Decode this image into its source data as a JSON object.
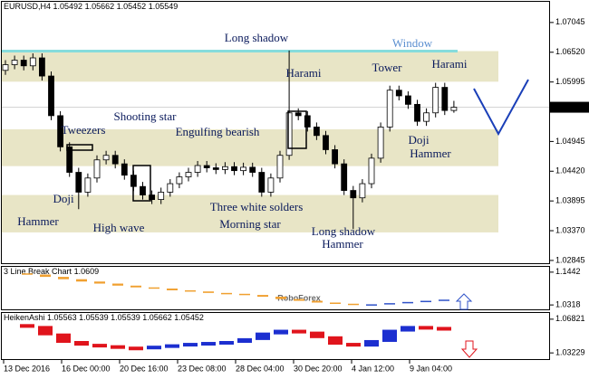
{
  "chart_data": [
    {
      "type": "candlestick",
      "symbol": "EURUSD,H4",
      "open": [
        1.062,
        1.063,
        1.0638,
        1.0628,
        1.0642,
        1.061,
        1.054,
        1.0485,
        1.044,
        1.0405,
        1.043,
        1.0462,
        1.047,
        1.0455,
        1.0435,
        1.0415,
        1.04,
        1.0392,
        1.0405,
        1.042,
        1.0432,
        1.044,
        1.0452,
        1.0448,
        1.0445,
        1.045,
        1.0443,
        1.0449,
        1.044,
        1.0405,
        1.043,
        1.047,
        1.0545,
        1.054,
        1.052,
        1.0505,
        1.048,
        1.0455,
        1.0408,
        1.0395,
        1.042,
        1.0465,
        1.052,
        1.0585,
        1.0575,
        1.056,
        1.053,
        1.0545,
        1.059,
        1.05492
      ],
      "high": [
        1.0638,
        1.0646,
        1.0646,
        1.065,
        1.065,
        1.0618,
        1.0548,
        1.0493,
        1.0448,
        1.0438,
        1.047,
        1.0478,
        1.0478,
        1.0463,
        1.0443,
        1.0423,
        1.0408,
        1.0413,
        1.0428,
        1.044,
        1.0448,
        1.046,
        1.046,
        1.0456,
        1.0458,
        1.0458,
        1.0457,
        1.0457,
        1.0448,
        1.0438,
        1.0478,
        1.0655,
        1.0553,
        1.0548,
        1.0528,
        1.0513,
        1.0488,
        1.0463,
        1.0416,
        1.0428,
        1.0473,
        1.0528,
        1.0593,
        1.0593,
        1.0583,
        1.0568,
        1.0553,
        1.0598,
        1.0598,
        1.05662
      ],
      "low": [
        1.0612,
        1.0622,
        1.062,
        1.062,
        1.0602,
        1.0532,
        1.0477,
        1.0432,
        1.0375,
        1.0397,
        1.0422,
        1.0454,
        1.0447,
        1.0427,
        1.0407,
        1.0392,
        1.0384,
        1.0384,
        1.0397,
        1.0412,
        1.0424,
        1.0432,
        1.044,
        1.0437,
        1.0437,
        1.0435,
        1.0435,
        1.0432,
        1.0397,
        1.0397,
        1.0422,
        1.0462,
        1.0532,
        1.0512,
        1.0497,
        1.0472,
        1.0447,
        1.04,
        1.034,
        1.0387,
        1.0412,
        1.0457,
        1.0512,
        1.0567,
        1.0552,
        1.0522,
        1.0522,
        1.0537,
        1.05412,
        1.05452
      ],
      "close": [
        1.063,
        1.0638,
        1.0628,
        1.0642,
        1.061,
        1.054,
        1.0485,
        1.044,
        1.0405,
        1.043,
        1.0462,
        1.047,
        1.0455,
        1.0435,
        1.0415,
        1.04,
        1.0392,
        1.0405,
        1.042,
        1.0432,
        1.044,
        1.0452,
        1.0448,
        1.0445,
        1.045,
        1.0443,
        1.0449,
        1.044,
        1.0405,
        1.043,
        1.047,
        1.0545,
        1.054,
        1.052,
        1.0505,
        1.048,
        1.0455,
        1.0408,
        1.0395,
        1.042,
        1.0465,
        1.052,
        1.0585,
        1.0575,
        1.056,
        1.053,
        1.0545,
        1.059,
        1.05492,
        1.05549
      ],
      "ylim": [
        1.0278,
        1.0741
      ],
      "yticks": [
        1.07045,
        {
          "value": 1.0652,
          "label": "1.06520"
        },
        1.05995,
        1.04945,
        {
          "value": 1.0442,
          "label": "1.04420"
        },
        1.03895,
        {
          "value": 1.0337,
          "label": "1.03370"
        },
        1.02845
      ],
      "zones": [
        [
          1.06,
          1.0654
        ],
        [
          1.0451,
          1.0516
        ],
        [
          1.0334,
          1.04
        ]
      ],
      "zone_color": "#e8e5c6",
      "window_level": 1.0654,
      "window_color": "#86dcdc",
      "up_color": "#ffffff",
      "down_color": "#000000",
      "annotations": [
        "Long shadow",
        "Window",
        "Harami",
        "Tower",
        "Harami",
        "Shooting star",
        "Tweezers",
        "Engulfing bearish",
        "Doji",
        "Hammer",
        "Doji",
        "Hammer",
        "High wave",
        "Three white solders",
        "Morning star",
        "Long shadow",
        "Hammer"
      ],
      "time_labels": [
        "13 Dec 2016",
        "16 Dec 00:00",
        "20 Dec 16:00",
        "23 Dec 08:00",
        "28 Dec 04:00",
        "30 Dec 20:00",
        "4 Jan 12:00",
        "9 Jan 04:00"
      ],
      "watermark": "RoboForex"
    },
    {
      "type": "line_break",
      "title": "3 Line Break Chart",
      "last": 1.0609,
      "values": [
        1.14,
        1.136,
        1.128,
        1.12,
        1.112,
        1.105,
        1.098,
        1.092,
        1.088,
        1.082,
        1.078,
        1.073,
        1.07,
        1.066,
        1.06,
        1.052,
        1.046,
        1.04,
        1.036,
        1.033,
        1.034,
        1.038,
        1.042,
        1.046,
        1.05
      ],
      "ylim": [
        1.0136,
        1.1624
      ],
      "yticks": [
        1.1442,
        1.0318
      ],
      "up_color": "#2f52c8",
      "down_color": "#f0a030"
    },
    {
      "type": "heiken_ashi",
      "title": "HeikenAshi",
      "header_values": [
        1.05563,
        1.05539,
        1.05539,
        1.05662,
        1.05452
      ],
      "values": [
        1.062,
        1.06,
        1.052,
        1.044,
        1.041,
        1.0395,
        1.038,
        1.0375,
        1.039,
        1.0405,
        1.042,
        1.043,
        1.044,
        1.047,
        1.053,
        1.056,
        1.054,
        1.049,
        1.042,
        1.04,
        1.045,
        1.056,
        1.06,
        1.059,
        1.057
      ],
      "ylim": [
        1.02473,
        1.07483
      ],
      "yticks": [
        1.06821,
        1.03229
      ],
      "up_color": "#1c2fd0",
      "down_color": "#e0141c"
    }
  ]
}
